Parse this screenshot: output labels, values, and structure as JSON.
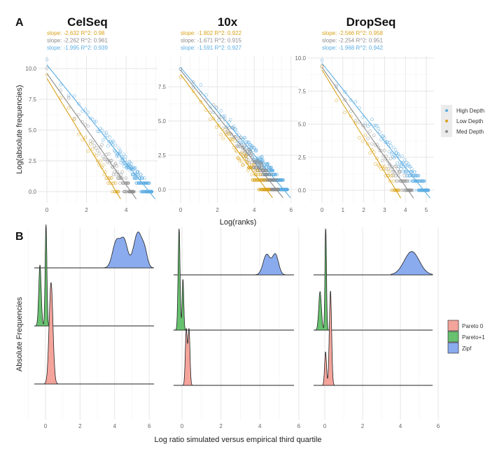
{
  "panel_labels": {
    "a": "A",
    "b": "B"
  },
  "chart_data": [
    {
      "type": "scatter",
      "panel": "A",
      "ylabel": "Log(absolute frequencies)",
      "xlabel": "Log(ranks)",
      "legend": {
        "position": "right",
        "entries": [
          {
            "name": "High Depth",
            "color": "#5DADE2"
          },
          {
            "name": "Low Depth",
            "color": "#D9A21B"
          },
          {
            "name": "Med Depth",
            "color": "#8C8C8C"
          }
        ]
      },
      "facets": [
        {
          "title": "CelSeq",
          "xticks": [
            "0",
            "2",
            "4"
          ],
          "xtick_values": [
            0,
            2,
            4
          ],
          "yticks": [
            "0.0",
            "2.5",
            "5.0",
            "7.5",
            "10.0"
          ],
          "ytick_values": [
            0,
            2.5,
            5,
            7.5,
            10
          ],
          "series": [
            {
              "name": "Low Depth",
              "slope_text": "slope: -2.632  R^2: 0.98",
              "slope": -2.632,
              "intercept": 9.2,
              "max_log_rank": 3.6
            },
            {
              "name": "Med Depth",
              "slope_text": "slope: -2.262  R^2: 0.961",
              "slope": -2.262,
              "intercept": 9.6,
              "max_log_rank": 4.4
            },
            {
              "name": "High Depth",
              "slope_text": "slope: -1.995  R^2: 0.939",
              "slope": -1.995,
              "intercept": 10.3,
              "max_log_rank": 5.3
            }
          ]
        },
        {
          "title": "10x",
          "xticks": [
            "0",
            "2",
            "4",
            "6"
          ],
          "xtick_values": [
            0,
            2,
            4,
            6
          ],
          "yticks": [
            "0.0",
            "2.5",
            "5.0",
            "7.5"
          ],
          "ytick_values": [
            0,
            2.5,
            5,
            7.5
          ],
          "series": [
            {
              "name": "Low Depth",
              "slope_text": "slope: -1.802  R^2: 0.922",
              "slope": -1.802,
              "intercept": 8.4,
              "max_log_rank": 4.8
            },
            {
              "name": "Med Depth",
              "slope_text": "slope: -1.671  R^2: 0.915",
              "slope": -1.671,
              "intercept": 8.7,
              "max_log_rank": 5.3
            },
            {
              "name": "High Depth",
              "slope_text": "slope: -1.591  R^2: 0.927",
              "slope": -1.591,
              "intercept": 8.9,
              "max_log_rank": 5.8
            }
          ]
        },
        {
          "title": "DropSeq",
          "xticks": [
            "0",
            "1",
            "2",
            "3",
            "4",
            "5"
          ],
          "xtick_values": [
            0,
            1,
            2,
            3,
            4,
            5
          ],
          "yticks": [
            "0.0",
            "2.5",
            "5.0",
            "7.5",
            "10.0"
          ],
          "ytick_values": [
            0,
            2.5,
            5,
            7.5,
            10
          ],
          "series": [
            {
              "name": "Low Depth",
              "slope_text": "slope: -2.566  R^2: 0.958",
              "slope": -2.566,
              "intercept": 9.1,
              "max_log_rank": 3.7
            },
            {
              "name": "Med Depth",
              "slope_text": "slope: -2.254  R^2: 0.951",
              "slope": -2.254,
              "intercept": 9.3,
              "max_log_rank": 4.3
            },
            {
              "name": "High Depth",
              "slope_text": "slope: -1.968  R^2: 0.942",
              "slope": -1.968,
              "intercept": 9.6,
              "max_log_rank": 5.1
            }
          ]
        }
      ]
    },
    {
      "type": "area",
      "subtype": "ridgeline-density",
      "panel": "B",
      "ylabel": "Absolute Frequencies",
      "xlabel": "Log ratio simulated versus empirical third quartile",
      "xticks": [
        "0",
        "2",
        "4",
        "6"
      ],
      "xtick_values": [
        0,
        2,
        4,
        6
      ],
      "legend": {
        "position": "right",
        "entries": [
          {
            "name": "Pareto 0",
            "color": "#F4A49B"
          },
          {
            "name": "Pareto+1",
            "color": "#67C16F"
          },
          {
            "name": "Zipf",
            "color": "#8AABEE"
          }
        ]
      },
      "facets": [
        {
          "name": "CelSeq",
          "ridges": [
            {
              "name": "Zipf",
              "range": [
                3.4,
                6.2
              ],
              "peaks": [
                [
                  4.1,
                  0.22,
                  0.26
                ],
                [
                  4.55,
                  0.2,
                  0.26
                ],
                [
                  5.35,
                  0.25,
                  0.35
                ],
                [
                  5.75,
                  0.15,
                  0.12
                ]
              ]
            },
            {
              "name": "Pareto+1",
              "range": [
                -0.6,
                0.3
              ],
              "peaks": [
                [
                  -0.32,
                  0.07,
                  0.6
                ],
                [
                  0.03,
                  0.05,
                  1.0
                ]
              ]
            },
            {
              "name": "Pareto 0",
              "range": [
                -0.1,
                0.9
              ],
              "peaks": [
                [
                  0.32,
                  0.11,
                  1.0
                ]
              ]
            }
          ]
        },
        {
          "name": "10x",
          "ridges": [
            {
              "name": "Zipf",
              "range": [
                3.7,
                5.4
              ],
              "peaks": [
                [
                  4.35,
                  0.18,
                  0.2
                ],
                [
                  4.8,
                  0.16,
                  0.2
                ]
              ]
            },
            {
              "name": "Pareto+1",
              "range": [
                -0.45,
                0.3
              ],
              "peaks": [
                [
                  -0.15,
                  0.05,
                  1.0
                ],
                [
                  0.05,
                  0.04,
                  0.5
                ]
              ]
            },
            {
              "name": "Pareto 0",
              "range": [
                0.05,
                0.55
              ],
              "peaks": [
                [
                  0.22,
                  0.05,
                  0.55
                ],
                [
                  0.36,
                  0.05,
                  0.55
                ]
              ]
            }
          ]
        },
        {
          "name": "DropSeq",
          "ridges": [
            {
              "name": "Zipf",
              "range": [
                3.5,
                5.7
              ],
              "peaks": [
                [
                  4.6,
                  0.4,
                  0.23
                ]
              ]
            },
            {
              "name": "Pareto+1",
              "range": [
                -0.55,
                0.3
              ],
              "peaks": [
                [
                  -0.25,
                  0.07,
                  0.38
                ],
                [
                  0.05,
                  0.04,
                  1.0
                ]
              ]
            },
            {
              "name": "Pareto 0",
              "range": [
                -0.15,
                0.6
              ],
              "peaks": [
                [
                  0.04,
                  0.05,
                  0.33
                ],
                [
                  0.3,
                  0.06,
                  0.93
                ]
              ]
            }
          ]
        }
      ]
    }
  ]
}
